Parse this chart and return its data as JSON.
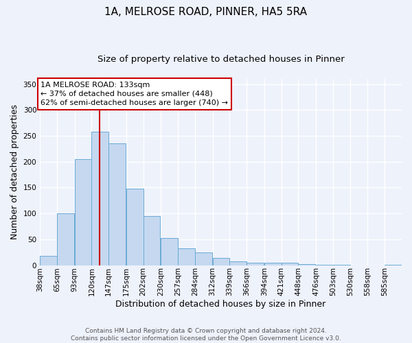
{
  "title": "1A, MELROSE ROAD, PINNER, HA5 5RA",
  "subtitle": "Size of property relative to detached houses in Pinner",
  "xlabel": "Distribution of detached houses by size in Pinner",
  "ylabel": "Number of detached properties",
  "bar_labels": [
    "38sqm",
    "65sqm",
    "93sqm",
    "120sqm",
    "147sqm",
    "175sqm",
    "202sqm",
    "230sqm",
    "257sqm",
    "284sqm",
    "312sqm",
    "339sqm",
    "366sqm",
    "394sqm",
    "421sqm",
    "448sqm",
    "476sqm",
    "503sqm",
    "530sqm",
    "558sqm",
    "585sqm"
  ],
  "bar_values": [
    18,
    100,
    205,
    258,
    235,
    148,
    95,
    52,
    33,
    25,
    14,
    7,
    5,
    5,
    5,
    2,
    1,
    1,
    0,
    0,
    1
  ],
  "bar_color": "#c5d8f0",
  "bar_edge_color": "#6aaad4",
  "vline_x": 133,
  "vline_color": "#cc0000",
  "annotation_text": "1A MELROSE ROAD: 133sqm\n← 37% of detached houses are smaller (448)\n62% of semi-detached houses are larger (740) →",
  "annotation_box_color": "#ffffff",
  "annotation_box_edgecolor": "#cc0000",
  "ylim": [
    0,
    360
  ],
  "bin_width": 27,
  "footnote": "Contains HM Land Registry data © Crown copyright and database right 2024.\nContains public sector information licensed under the Open Government Licence v3.0.",
  "background_color": "#eef2fb",
  "grid_color": "#ffffff",
  "title_fontsize": 11,
  "subtitle_fontsize": 9.5,
  "label_fontsize": 9,
  "tick_fontsize": 7.5,
  "footnote_fontsize": 6.5
}
